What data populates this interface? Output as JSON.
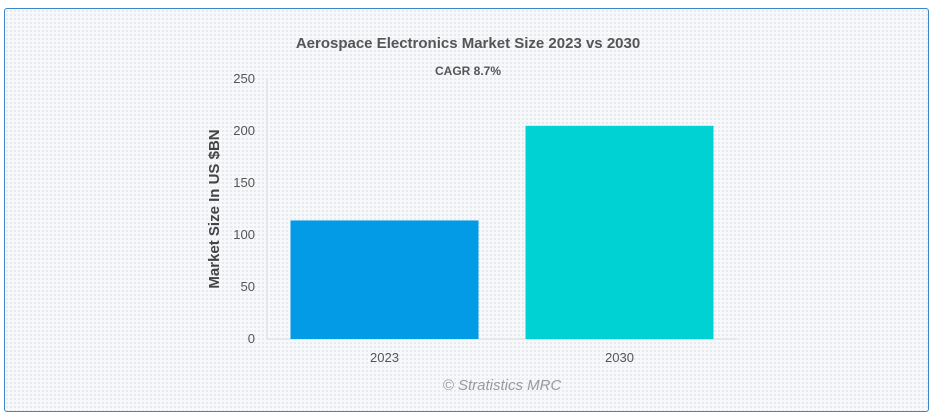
{
  "chart_data": {
    "type": "bar",
    "title": "Aerospace Electronics Market Size 2023 vs 2030",
    "subtitle": "CAGR 8.7%",
    "xlabel": "",
    "ylabel": "Market Size In US $BN",
    "categories": [
      "2023",
      "2030"
    ],
    "values": [
      114,
      205
    ],
    "colors": [
      "#039be5",
      "#00d2d3"
    ],
    "ylim": [
      0,
      250
    ],
    "yticks": [
      0,
      50,
      100,
      150,
      200,
      250
    ],
    "grid": false,
    "legend": "none"
  },
  "credit": "© Stratistics MRC"
}
